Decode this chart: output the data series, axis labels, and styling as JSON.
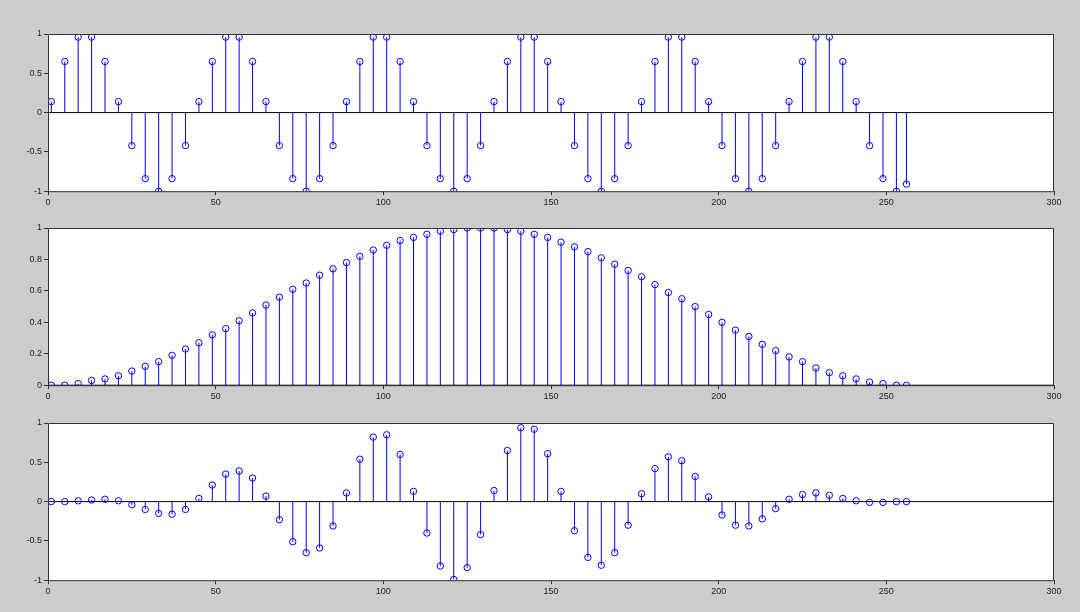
{
  "chart_data": [
    {
      "type": "lollipop",
      "marker": "circle",
      "color": "#0000ff",
      "xlim": [
        0,
        300
      ],
      "xticks": [
        0,
        50,
        100,
        150,
        200,
        250,
        300
      ],
      "ylim": [
        -1,
        1
      ],
      "yticks": [
        -1,
        -0.5,
        0,
        0.5,
        1
      ],
      "x": [
        1,
        5,
        9,
        13,
        17,
        21,
        25,
        29,
        33,
        37,
        41,
        45,
        49,
        53,
        57,
        61,
        65,
        69,
        73,
        77,
        81,
        85,
        89,
        93,
        97,
        101,
        105,
        109,
        113,
        117,
        121,
        125,
        129,
        133,
        137,
        141,
        145,
        149,
        153,
        157,
        161,
        165,
        169,
        173,
        177,
        181,
        185,
        189,
        193,
        197,
        201,
        205,
        209,
        213,
        217,
        221,
        225,
        229,
        233,
        237,
        241,
        245,
        249,
        253,
        256
      ],
      "values": [
        0.14,
        0.65,
        0.96,
        0.96,
        0.65,
        0.14,
        -0.42,
        -0.84,
        -1,
        -0.84,
        -0.42,
        0.14,
        0.65,
        0.96,
        0.96,
        0.65,
        0.14,
        -0.42,
        -0.84,
        -1,
        -0.84,
        -0.42,
        0.14,
        0.65,
        0.96,
        0.96,
        0.65,
        0.14,
        -0.42,
        -0.84,
        -1,
        -0.84,
        -0.42,
        0.14,
        0.65,
        0.96,
        0.96,
        0.65,
        0.14,
        -0.42,
        -0.84,
        -1,
        -0.84,
        -0.42,
        0.14,
        0.65,
        0.96,
        0.96,
        0.65,
        0.14,
        -0.42,
        -0.84,
        -1,
        -0.84,
        -0.42,
        0.14,
        0.65,
        0.96,
        0.96,
        0.65,
        0.14,
        -0.42,
        -0.84,
        -1,
        -0.91
      ]
    },
    {
      "type": "lollipop",
      "marker": "circle",
      "color": "#0000ff",
      "xlim": [
        0,
        300
      ],
      "xticks": [
        0,
        50,
        100,
        150,
        200,
        250,
        300
      ],
      "ylim": [
        0,
        1
      ],
      "yticks": [
        0,
        0.2,
        0.4,
        0.6,
        0.8,
        1
      ],
      "x": [
        1,
        5,
        9,
        13,
        17,
        21,
        25,
        29,
        33,
        37,
        41,
        45,
        49,
        53,
        57,
        61,
        65,
        69,
        73,
        77,
        81,
        85,
        89,
        93,
        97,
        101,
        105,
        109,
        113,
        117,
        121,
        125,
        129,
        133,
        137,
        141,
        145,
        149,
        153,
        157,
        161,
        165,
        169,
        173,
        177,
        181,
        185,
        189,
        193,
        197,
        201,
        205,
        209,
        213,
        217,
        221,
        225,
        229,
        233,
        237,
        241,
        245,
        249,
        253,
        256
      ],
      "values": [
        0,
        0,
        0.01,
        0.03,
        0.04,
        0.06,
        0.09,
        0.12,
        0.15,
        0.19,
        0.23,
        0.27,
        0.32,
        0.36,
        0.41,
        0.46,
        0.51,
        0.56,
        0.61,
        0.65,
        0.7,
        0.74,
        0.78,
        0.82,
        0.86,
        0.89,
        0.92,
        0.94,
        0.96,
        0.98,
        0.99,
        1,
        1,
        1,
        0.99,
        0.98,
        0.96,
        0.94,
        0.91,
        0.88,
        0.85,
        0.81,
        0.77,
        0.73,
        0.69,
        0.64,
        0.59,
        0.55,
        0.5,
        0.45,
        0.4,
        0.35,
        0.31,
        0.26,
        0.22,
        0.18,
        0.15,
        0.11,
        0.08,
        0.06,
        0.04,
        0.02,
        0.01,
        0,
        0
      ]
    },
    {
      "type": "lollipop",
      "marker": "circle",
      "color": "#0000ff",
      "xlim": [
        0,
        300
      ],
      "xticks": [
        0,
        50,
        100,
        150,
        200,
        250,
        300
      ],
      "ylim": [
        -1,
        1
      ],
      "yticks": [
        -1,
        -0.5,
        0,
        0.5,
        1
      ],
      "x": [
        1,
        5,
        9,
        13,
        17,
        21,
        25,
        29,
        33,
        37,
        41,
        45,
        49,
        53,
        57,
        61,
        65,
        69,
        73,
        77,
        81,
        85,
        89,
        93,
        97,
        101,
        105,
        109,
        113,
        117,
        121,
        125,
        129,
        133,
        137,
        141,
        145,
        149,
        153,
        157,
        161,
        165,
        169,
        173,
        177,
        181,
        185,
        189,
        193,
        197,
        201,
        205,
        209,
        213,
        217,
        221,
        225,
        229,
        233,
        237,
        241,
        245,
        249,
        253,
        256
      ],
      "values": [
        0,
        0,
        0.01,
        0.02,
        0.03,
        0.01,
        -0.04,
        -0.1,
        -0.15,
        -0.16,
        -0.1,
        0.04,
        0.21,
        0.35,
        0.39,
        0.3,
        0.07,
        -0.23,
        -0.51,
        -0.65,
        -0.59,
        -0.31,
        0.11,
        0.54,
        0.82,
        0.85,
        0.6,
        0.13,
        -0.4,
        -0.82,
        -0.99,
        -0.84,
        -0.42,
        0.14,
        0.65,
        0.94,
        0.92,
        0.61,
        0.13,
        -0.37,
        -0.71,
        -0.81,
        -0.65,
        -0.3,
        0.1,
        0.42,
        0.57,
        0.52,
        0.32,
        0.06,
        -0.17,
        -0.3,
        -0.31,
        -0.22,
        -0.09,
        0.03,
        0.09,
        0.11,
        0.08,
        0.04,
        0.01,
        -0.01,
        -0.01,
        0,
        0
      ]
    }
  ]
}
